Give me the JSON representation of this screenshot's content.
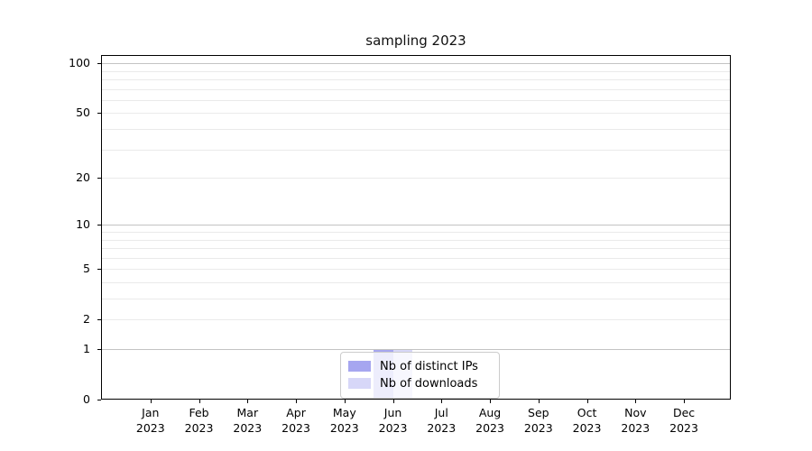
{
  "figure_title": "sampling 2023",
  "chart_data": {
    "type": "bar",
    "title": "sampling 2023",
    "yscale": "log(1+y)",
    "categories": [
      "Jan",
      "Feb",
      "Mar",
      "Apr",
      "May",
      "Jun",
      "Jul",
      "Aug",
      "Sep",
      "Oct",
      "Nov",
      "Dec"
    ],
    "year_label": "2023",
    "series": [
      {
        "name": "Nb of distinct IPs",
        "color": "#a6a6f0",
        "values": [
          0,
          0,
          0,
          0,
          0,
          1,
          0,
          0,
          0,
          0,
          0,
          0
        ]
      },
      {
        "name": "Nb of downloads",
        "color": "#d7d7f8",
        "values": [
          0,
          0,
          0,
          0,
          0,
          1,
          0,
          0,
          0,
          0,
          0,
          0
        ]
      }
    ],
    "y_tick_labels": [
      0,
      1,
      2,
      5,
      10,
      20,
      50,
      100
    ],
    "y_major_gridlines": [
      1,
      10,
      100
    ],
    "y_minor_gridlines": [
      2,
      3,
      4,
      5,
      6,
      7,
      8,
      9,
      20,
      30,
      40,
      50,
      60,
      70,
      80,
      90
    ],
    "ylim": [
      0,
      113
    ],
    "grid": true,
    "legend_position": "lower center",
    "legend_entries": [
      "Nb of distinct IPs",
      "Nb of downloads"
    ]
  },
  "colors": {
    "distinct_ips_bar": "#a6a6f0",
    "downloads_bar": "#d7d7f8",
    "major_grid": "#c3c3c3",
    "minor_grid": "#eaeaea",
    "spine": "#000000",
    "legend_border": "#cccccc"
  }
}
